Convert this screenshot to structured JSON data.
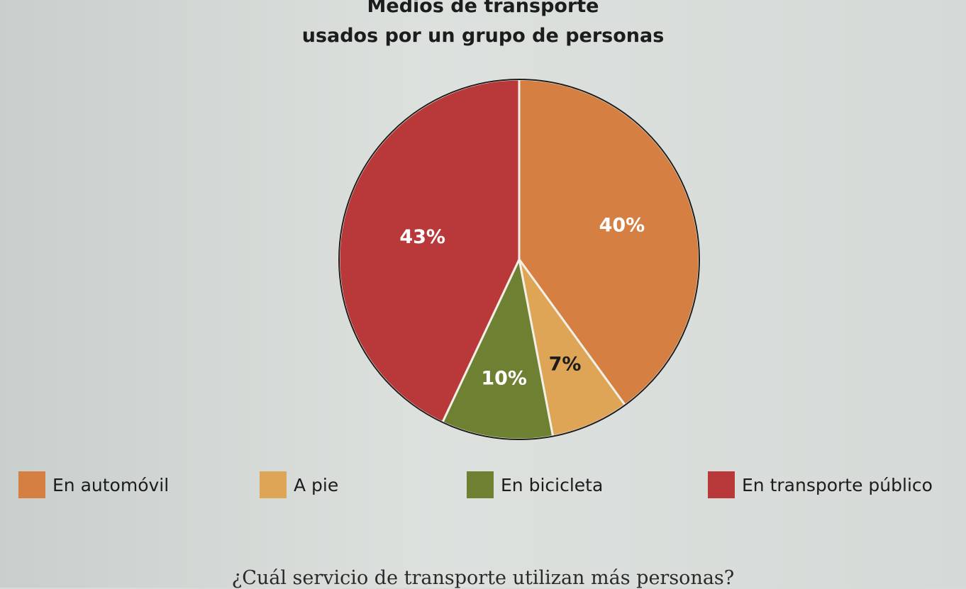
{
  "title_line1": "Medios de transporte",
  "title_line2": "usados por un grupo de personas",
  "question": "¿Cuál servicio de transporte utilizan más personas?",
  "chart_data": {
    "type": "pie",
    "title": "Medios de transporte usados por un grupo de personas",
    "series": [
      {
        "name": "En automóvil",
        "value": 40,
        "label": "40%",
        "color": "#d57f42",
        "label_color": "#ffffff"
      },
      {
        "name": "A pie",
        "value": 7,
        "label": "7%",
        "color": "#dfa556",
        "label_color": "#1c1c1c"
      },
      {
        "name": "En bicicleta",
        "value": 10,
        "label": "10%",
        "color": "#6e8032",
        "label_color": "#ffffff"
      },
      {
        "name": "En transporte público",
        "value": 43,
        "label": "43%",
        "color": "#b9383a",
        "label_color": "#ffffff"
      }
    ],
    "legend_position": "bottom"
  }
}
